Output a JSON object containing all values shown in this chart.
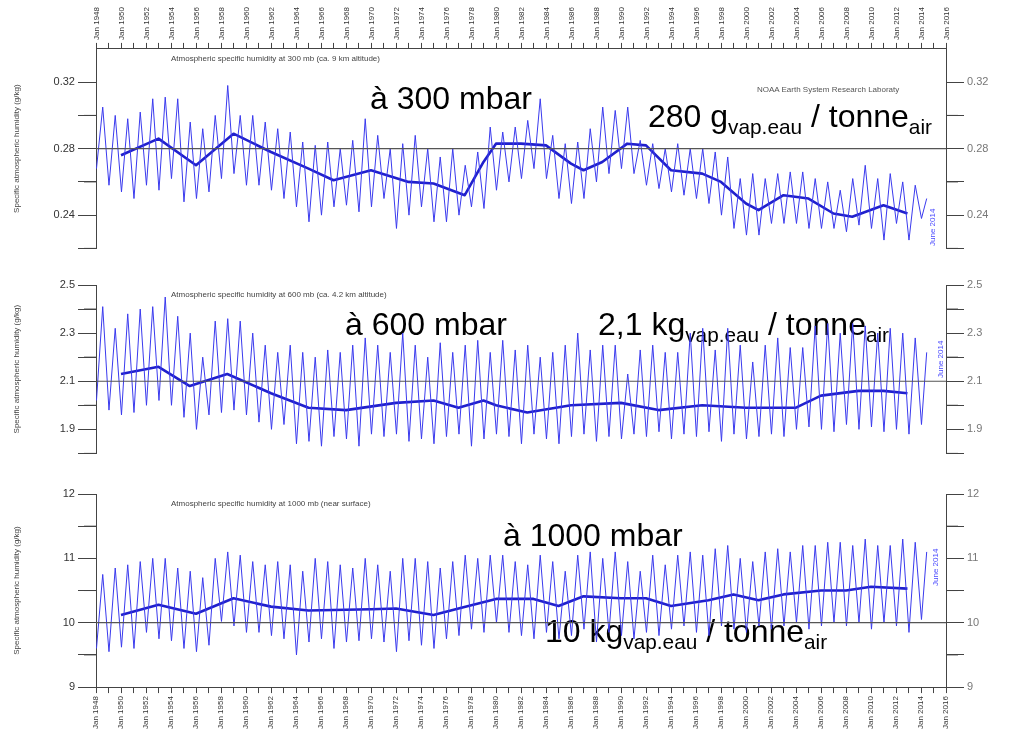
{
  "chart_data": [
    {
      "type": "line",
      "title": "Atmospheric specific humidity at 300 mb (ca. 9 km altitude)",
      "ylabel": "Specific atmospheric humidity (g/kg)",
      "x": [
        "1948-01-15",
        "1948-07-15",
        "1949-01-15",
        "1949-07-15",
        "1950-01-15",
        "1950-07-15",
        "1951-01-15",
        "1951-07-15",
        "1952-01-15",
        "1952-07-15",
        "1953-01-15",
        "1953-07-15",
        "1954-01-15",
        "1954-07-15",
        "1955-01-15",
        "1955-07-15",
        "1956-01-15",
        "1956-07-15",
        "1957-01-15",
        "1957-07-15",
        "1958-01-15",
        "1958-07-15",
        "1959-01-15",
        "1959-07-15",
        "1960-01-15",
        "1960-07-15",
        "1961-01-15",
        "1961-07-15",
        "1962-01-15",
        "1962-07-15",
        "1963-01-15",
        "1963-07-15",
        "1964-01-15",
        "1964-07-15",
        "1965-01-15",
        "1965-07-15",
        "1966-01-15",
        "1966-07-15",
        "1967-01-15",
        "1967-07-15",
        "1968-01-15",
        "1968-07-15",
        "1969-01-15",
        "1969-07-15",
        "1970-01-15",
        "1970-07-15",
        "1971-01-15",
        "1971-07-15",
        "1972-01-15",
        "1972-07-15",
        "1973-01-15",
        "1973-07-15",
        "1974-01-15",
        "1974-07-15",
        "1975-01-15",
        "1975-07-15",
        "1976-01-15",
        "1976-07-15",
        "1977-01-15",
        "1977-07-15",
        "1978-01-15",
        "1978-07-15",
        "1979-01-15",
        "1979-07-15",
        "1980-01-15",
        "1980-07-15",
        "1981-01-15",
        "1981-07-15",
        "1982-01-15",
        "1982-07-15",
        "1983-01-15",
        "1983-07-15",
        "1984-01-15",
        "1984-07-15",
        "1985-01-15",
        "1985-07-15",
        "1986-01-15",
        "1986-07-15",
        "1987-01-15",
        "1987-07-15",
        "1988-01-15",
        "1988-07-15",
        "1989-01-15",
        "1989-07-15",
        "1990-01-15",
        "1990-07-15",
        "1991-01-15",
        "1991-07-15",
        "1992-01-15",
        "1992-07-15",
        "1993-01-15",
        "1993-07-15",
        "1994-01-15",
        "1994-07-15",
        "1995-01-15",
        "1995-07-15",
        "1996-01-15",
        "1996-07-15",
        "1997-01-15",
        "1997-07-15",
        "1998-01-15",
        "1998-07-15",
        "1999-01-15",
        "1999-07-15",
        "2000-01-15",
        "2000-07-15",
        "2001-01-15",
        "2001-07-15",
        "2002-01-15",
        "2002-07-15",
        "2003-01-15",
        "2003-07-15",
        "2004-01-15",
        "2004-07-15",
        "2005-01-15",
        "2005-07-15",
        "2006-01-15",
        "2006-07-15",
        "2007-01-15",
        "2007-07-15",
        "2008-01-15",
        "2008-07-15",
        "2009-01-15",
        "2009-07-15",
        "2010-01-15",
        "2010-07-15",
        "2011-01-15",
        "2011-07-15",
        "2012-01-15",
        "2012-07-15",
        "2013-01-15",
        "2013-07-15",
        "2014-01-15",
        "2014-06-15"
      ],
      "series": [
        {
          "color": "#3a3aee",
          "values": [
            0.268,
            0.305,
            0.258,
            0.3,
            0.254,
            0.298,
            0.25,
            0.302,
            0.258,
            0.31,
            0.255,
            0.311,
            0.262,
            0.31,
            0.248,
            0.296,
            0.25,
            0.292,
            0.254,
            0.3,
            0.262,
            0.318,
            0.265,
            0.3,
            0.258,
            0.3,
            0.258,
            0.296,
            0.255,
            0.292,
            0.25,
            0.29,
            0.245,
            0.284,
            0.236,
            0.282,
            0.24,
            0.284,
            0.245,
            0.28,
            0.246,
            0.285,
            0.242,
            0.298,
            0.245,
            0.288,
            0.25,
            0.28,
            0.232,
            0.283,
            0.24,
            0.288,
            0.245,
            0.28,
            0.236,
            0.275,
            0.236,
            0.28,
            0.24,
            0.27,
            0.245,
            0.278,
            0.244,
            0.293,
            0.255,
            0.29,
            0.26,
            0.293,
            0.262,
            0.297,
            0.268,
            0.31,
            0.262,
            0.288,
            0.25,
            0.283,
            0.247,
            0.284,
            0.25,
            0.292,
            0.26,
            0.305,
            0.265,
            0.303,
            0.268,
            0.305,
            0.265,
            0.285,
            0.258,
            0.283,
            0.256,
            0.28,
            0.254,
            0.283,
            0.252,
            0.28,
            0.25,
            0.28,
            0.247,
            0.278,
            0.24,
            0.275,
            0.232,
            0.262,
            0.228,
            0.265,
            0.228,
            0.262,
            0.235,
            0.265,
            0.235,
            0.266,
            0.235,
            0.266,
            0.232,
            0.262,
            0.232,
            0.26,
            0.232,
            0.255,
            0.23,
            0.262,
            0.234,
            0.27,
            0.232,
            0.262,
            0.225,
            0.265,
            0.235,
            0.26,
            0.225,
            0.258,
            0.238,
            0.25
          ]
        },
        {
          "color": "#2020cc",
          "x": [
            "1950-01",
            "1953-01",
            "1956-01",
            "1959-01",
            "1962-01",
            "1965-01",
            "1967-01",
            "1970-01",
            "1973-01",
            "1975-01",
            "1977-07",
            "1979-01",
            "1980-01",
            "1982-01",
            "1984-01",
            "1986-01",
            "1987-01",
            "1988-07",
            "1990-07",
            "1992-01",
            "1994-01",
            "1996-07",
            "1998-01",
            "2000-01",
            "2001-01",
            "2003-01",
            "2005-01",
            "2007-01",
            "2008-07",
            "2011-01",
            "2012-12"
          ],
          "values": [
            0.276,
            0.286,
            0.27,
            0.289,
            0.278,
            0.268,
            0.261,
            0.267,
            0.26,
            0.259,
            0.252,
            0.272,
            0.283,
            0.283,
            0.282,
            0.271,
            0.267,
            0.272,
            0.283,
            0.282,
            0.267,
            0.265,
            0.26,
            0.247,
            0.243,
            0.252,
            0.25,
            0.241,
            0.239,
            0.246,
            0.241
          ]
        }
      ],
      "xlim": [
        "1948-01",
        "2016-01"
      ],
      "x2lim": [
        "1948-01",
        "2016-01"
      ],
      "x2ticks": [
        {
          "value": "1948-01",
          "label": "Jan 1948"
        },
        {
          "value": "1949-01",
          "label": null
        },
        {
          "value": "1950-01",
          "label": "Jan 1950"
        },
        {
          "value": "1951-01",
          "label": null
        },
        {
          "value": "1952-01",
          "label": "Jan 1952"
        },
        {
          "value": "1953-01",
          "label": null
        },
        {
          "value": "1954-01",
          "label": "Jan 1954"
        },
        {
          "value": "1955-01",
          "label": null
        },
        {
          "value": "1956-01",
          "label": "Jan 1956"
        },
        {
          "value": "1957-01",
          "label": null
        },
        {
          "value": "1958-01",
          "label": "Jan 1958"
        },
        {
          "value": "1959-01",
          "label": null
        },
        {
          "value": "1960-01",
          "label": "Jan 1960"
        },
        {
          "value": "1961-01",
          "label": null
        },
        {
          "value": "1962-01",
          "label": "Jan 1962"
        },
        {
          "value": "1963-01",
          "label": null
        },
        {
          "value": "1964-01",
          "label": "Jan 1964"
        },
        {
          "value": "1965-01",
          "label": null
        },
        {
          "value": "1966-01",
          "label": "Jan 1966"
        },
        {
          "value": "1967-01",
          "label": null
        },
        {
          "value": "1968-01",
          "label": "Jan 1968"
        },
        {
          "value": "1969-01",
          "label": null
        },
        {
          "value": "1970-01",
          "label": "Jan 1970"
        },
        {
          "value": "1971-01",
          "label": null
        },
        {
          "value": "1972-01",
          "label": "Jan 1972"
        },
        {
          "value": "1973-01",
          "label": null
        },
        {
          "value": "1974-01",
          "label": "Jan 1974"
        },
        {
          "value": "1975-01",
          "label": null
        },
        {
          "value": "1976-01",
          "label": "Jan 1976"
        },
        {
          "value": "1977-01",
          "label": null
        },
        {
          "value": "1978-01",
          "label": "Jan 1978"
        },
        {
          "value": "1979-01",
          "label": null
        },
        {
          "value": "1980-01",
          "label": "Jan 1980"
        },
        {
          "value": "1981-01",
          "label": null
        },
        {
          "value": "1982-01",
          "label": "Jan 1982"
        },
        {
          "value": "1983-01",
          "label": null
        },
        {
          "value": "1984-01",
          "label": "Jan 1984"
        },
        {
          "value": "1985-01",
          "label": null
        },
        {
          "value": "1986-01",
          "label": "Jan 1986"
        },
        {
          "value": "1987-01",
          "label": null
        },
        {
          "value": "1988-01",
          "label": "Jan 1988"
        },
        {
          "value": "1989-01",
          "label": null
        },
        {
          "value": "1990-01",
          "label": "Jan 1990"
        },
        {
          "value": "1991-01",
          "label": null
        },
        {
          "value": "1992-01",
          "label": "Jan 1992"
        },
        {
          "value": "1993-01",
          "label": null
        },
        {
          "value": "1994-01",
          "label": "Jan 1994"
        },
        {
          "value": "1995-01",
          "label": null
        },
        {
          "value": "1996-01",
          "label": "Jan 1996"
        },
        {
          "value": "1997-01",
          "label": null
        },
        {
          "value": "1998-01",
          "label": "Jan 1998"
        },
        {
          "value": "1999-01",
          "label": null
        },
        {
          "value": "2000-01",
          "label": "Jan 2000"
        },
        {
          "value": "2001-01",
          "label": null
        },
        {
          "value": "2002-01",
          "label": "Jan 2002"
        },
        {
          "value": "2003-01",
          "label": null
        },
        {
          "value": "2004-01",
          "label": "Jan 2004"
        },
        {
          "value": "2005-01",
          "label": null
        },
        {
          "value": "2006-01",
          "label": "Jan 2006"
        },
        {
          "value": "2007-01",
          "label": null
        },
        {
          "value": "2008-01",
          "label": "Jan 2008"
        },
        {
          "value": "2009-01",
          "label": null
        },
        {
          "value": "2010-01",
          "label": "Jan 2010"
        },
        {
          "value": "2011-01",
          "label": null
        },
        {
          "value": "2012-01",
          "label": "Jan 2012"
        },
        {
          "value": "2013-01",
          "label": null
        },
        {
          "value": "2014-01",
          "label": "Jan 2014"
        },
        {
          "value": "2015-01",
          "label": null
        },
        {
          "value": "2016-01",
          "label": "Jan 2016"
        }
      ],
      "ylim": [
        0.22,
        0.34
      ],
      "yticks": [
        {
          "value": 0.22,
          "label": null
        },
        0.24,
        {
          "value": 0.26,
          "label": null
        },
        0.28,
        {
          "value": 0.3,
          "label": null
        },
        0.32
      ],
      "y2lim": [
        0.22,
        0.34
      ],
      "y2ticks": [
        {
          "value": 0.22,
          "label": null
        },
        0.24,
        {
          "value": 0.26,
          "label": null
        },
        0.28,
        {
          "value": 0.3,
          "label": null
        },
        0.32
      ],
      "tick_labels": "y",
      "ref_lines": [
        {
          "axis": "y",
          "value": 0.28,
          "color": "#555555"
        }
      ],
      "annotations": [
        "à 300 mbar",
        "280 g$_{vap.eau}$ / tonne$_{air}$",
        "NOAA Earth System Research Laboraty",
        "June 2014"
      ]
    },
    {
      "type": "line",
      "title": "Atmospheric specific humidity at 600 mb (ca. 4.2 km altitude)",
      "ylabel": "Specific atmospheric humidity (g/kg)",
      "x": [
        "1948-01-15",
        "1948-07-15",
        "1949-01-15",
        "1949-07-15",
        "1950-01-15",
        "1950-07-15",
        "1951-01-15",
        "1951-07-15",
        "1952-01-15",
        "1952-07-15",
        "1953-01-15",
        "1953-07-15",
        "1954-01-15",
        "1954-07-15",
        "1955-01-15",
        "1955-07-15",
        "1956-01-15",
        "1956-07-15",
        "1957-01-15",
        "1957-07-15",
        "1958-01-15",
        "1958-07-15",
        "1959-01-15",
        "1959-07-15",
        "1960-01-15",
        "1960-07-15",
        "1961-01-15",
        "1961-07-15",
        "1962-01-15",
        "1962-07-15",
        "1963-01-15",
        "1963-07-15",
        "1964-01-15",
        "1964-07-15",
        "1965-01-15",
        "1965-07-15",
        "1966-01-15",
        "1966-07-15",
        "1967-01-15",
        "1967-07-15",
        "1968-01-15",
        "1968-07-15",
        "1969-01-15",
        "1969-07-15",
        "1970-01-15",
        "1970-07-15",
        "1971-01-15",
        "1971-07-15",
        "1972-01-15",
        "1972-07-15",
        "1973-01-15",
        "1973-07-15",
        "1974-01-15",
        "1974-07-15",
        "1975-01-15",
        "1975-07-15",
        "1976-01-15",
        "1976-07-15",
        "1977-01-15",
        "1977-07-15",
        "1978-01-15",
        "1978-07-15",
        "1979-01-15",
        "1979-07-15",
        "1980-01-15",
        "1980-07-15",
        "1981-01-15",
        "1981-07-15",
        "1982-01-15",
        "1982-07-15",
        "1983-01-15",
        "1983-07-15",
        "1984-01-15",
        "1984-07-15",
        "1985-01-15",
        "1985-07-15",
        "1986-01-15",
        "1986-07-15",
        "1987-01-15",
        "1987-07-15",
        "1988-01-15",
        "1988-07-15",
        "1989-01-15",
        "1989-07-15",
        "1990-01-15",
        "1990-07-15",
        "1991-01-15",
        "1991-07-15",
        "1992-01-15",
        "1992-07-15",
        "1993-01-15",
        "1993-07-15",
        "1994-01-15",
        "1994-07-15",
        "1995-01-15",
        "1995-07-15",
        "1996-01-15",
        "1996-07-15",
        "1997-01-15",
        "1997-07-15",
        "1998-01-15",
        "1998-07-15",
        "1999-01-15",
        "1999-07-15",
        "2000-01-15",
        "2000-07-15",
        "2001-01-15",
        "2001-07-15",
        "2002-01-15",
        "2002-07-15",
        "2003-01-15",
        "2003-07-15",
        "2004-01-15",
        "2004-07-15",
        "2005-01-15",
        "2005-07-15",
        "2006-01-15",
        "2006-07-15",
        "2007-01-15",
        "2007-07-15",
        "2008-01-15",
        "2008-07-15",
        "2009-01-15",
        "2009-07-15",
        "2010-01-15",
        "2010-07-15",
        "2011-01-15",
        "2011-07-15",
        "2012-01-15",
        "2012-07-15",
        "2013-01-15",
        "2013-07-15",
        "2014-01-15",
        "2014-06-15"
      ],
      "series": [
        {
          "color": "#3a3aee",
          "values": [
            2.02,
            2.41,
            1.98,
            2.32,
            1.96,
            2.38,
            1.97,
            2.4,
            2.0,
            2.41,
            2.02,
            2.45,
            2.0,
            2.37,
            1.95,
            2.3,
            1.9,
            2.2,
            1.96,
            2.35,
            1.97,
            2.36,
            1.98,
            2.35,
            1.96,
            2.3,
            1.93,
            2.25,
            1.9,
            2.22,
            1.92,
            2.25,
            1.84,
            2.22,
            1.85,
            2.2,
            1.83,
            2.23,
            1.87,
            2.22,
            1.86,
            2.25,
            1.83,
            2.28,
            1.88,
            2.25,
            1.87,
            2.22,
            1.88,
            2.3,
            1.85,
            2.25,
            1.86,
            2.2,
            1.84,
            2.26,
            1.87,
            2.22,
            1.88,
            2.25,
            1.83,
            2.27,
            1.86,
            2.22,
            1.88,
            2.27,
            1.87,
            2.23,
            1.84,
            2.25,
            1.88,
            2.2,
            1.86,
            2.22,
            1.84,
            2.25,
            1.87,
            2.3,
            1.88,
            2.23,
            1.85,
            2.25,
            1.87,
            2.25,
            1.86,
            2.13,
            1.88,
            2.23,
            1.87,
            2.25,
            1.89,
            2.22,
            1.86,
            2.22,
            1.88,
            2.3,
            1.87,
            2.32,
            1.89,
            2.23,
            1.85,
            2.32,
            1.88,
            2.25,
            1.86,
            2.18,
            1.87,
            2.25,
            1.88,
            2.28,
            1.87,
            2.24,
            1.9,
            2.24,
            1.91,
            2.33,
            1.9,
            2.34,
            1.89,
            2.3,
            1.92,
            2.34,
            1.9,
            2.33,
            1.91,
            2.3,
            1.89,
            2.32,
            1.9,
            2.3,
            1.88,
            2.28,
            1.92,
            2.22
          ]
        },
        {
          "color": "#2020cc",
          "x": [
            "1950-01",
            "1953-01",
            "1955-07",
            "1958-07",
            "1962-01",
            "1965-01",
            "1968-01",
            "1972-01",
            "1975-01",
            "1977-01",
            "1979-01",
            "1980-01",
            "1982-07",
            "1986-01",
            "1990-01",
            "1993-01",
            "1996-07",
            "2000-01",
            "2004-01",
            "2006-01",
            "2009-01",
            "2011-01",
            "2012-12"
          ],
          "values": [
            2.13,
            2.16,
            2.08,
            2.13,
            2.05,
            1.99,
            1.98,
            2.01,
            2.02,
            1.99,
            2.02,
            2.0,
            1.97,
            2.0,
            2.01,
            1.98,
            2.0,
            1.99,
            1.99,
            2.04,
            2.06,
            2.06,
            2.05
          ]
        }
      ],
      "xlim": [
        "1948-01",
        "2016-01"
      ],
      "ylim": [
        1.8,
        2.5
      ],
      "yticks": [
        {
          "value": 1.8,
          "label": null
        },
        1.9,
        {
          "value": 2.0,
          "label": null
        },
        2.1,
        {
          "value": 2.2,
          "label": null
        },
        2.3,
        {
          "value": 2.4,
          "label": null
        },
        2.5
      ],
      "y2lim": [
        1.8,
        2.5
      ],
      "y2ticks": [
        {
          "value": 1.8,
          "label": null
        },
        1.9,
        {
          "value": 2.0,
          "label": null
        },
        2.1,
        {
          "value": 2.2,
          "label": null
        },
        2.3,
        {
          "value": 2.4,
          "label": null
        },
        2.5
      ],
      "tick_labels": "y",
      "ref_lines": [
        {
          "axis": "y",
          "value": 2.1,
          "color": "#555555"
        }
      ],
      "annotations": [
        "à 600 mbar",
        "2,1 kg$_{vap.eau}$ / tonne$_{air}$",
        "June 2014"
      ]
    },
    {
      "type": "line",
      "title": "Atmospheric specific humidity at 1000 mb (near surface)",
      "ylabel": "Specific atmospheric humidity (g/kg)",
      "x": [
        "1948-01-15",
        "1948-07-15",
        "1949-01-15",
        "1949-07-15",
        "1950-01-15",
        "1950-07-15",
        "1951-01-15",
        "1951-07-15",
        "1952-01-15",
        "1952-07-15",
        "1953-01-15",
        "1953-07-15",
        "1954-01-15",
        "1954-07-15",
        "1955-01-15",
        "1955-07-15",
        "1956-01-15",
        "1956-07-15",
        "1957-01-15",
        "1957-07-15",
        "1958-01-15",
        "1958-07-15",
        "1959-01-15",
        "1959-07-15",
        "1960-01-15",
        "1960-07-15",
        "1961-01-15",
        "1961-07-15",
        "1962-01-15",
        "1962-07-15",
        "1963-01-15",
        "1963-07-15",
        "1964-01-15",
        "1964-07-15",
        "1965-01-15",
        "1965-07-15",
        "1966-01-15",
        "1966-07-15",
        "1967-01-15",
        "1967-07-15",
        "1968-01-15",
        "1968-07-15",
        "1969-01-15",
        "1969-07-15",
        "1970-01-15",
        "1970-07-15",
        "1971-01-15",
        "1971-07-15",
        "1972-01-15",
        "1972-07-15",
        "1973-01-15",
        "1973-07-15",
        "1974-01-15",
        "1974-07-15",
        "1975-01-15",
        "1975-07-15",
        "1976-01-15",
        "1976-07-15",
        "1977-01-15",
        "1977-07-15",
        "1978-01-15",
        "1978-07-15",
        "1979-01-15",
        "1979-07-15",
        "1980-01-15",
        "1980-07-15",
        "1981-01-15",
        "1981-07-15",
        "1982-01-15",
        "1982-07-15",
        "1983-01-15",
        "1983-07-15",
        "1984-01-15",
        "1984-07-15",
        "1985-01-15",
        "1985-07-15",
        "1986-01-15",
        "1986-07-15",
        "1987-01-15",
        "1987-07-15",
        "1988-01-15",
        "1988-07-15",
        "1989-01-15",
        "1989-07-15",
        "1990-01-15",
        "1990-07-15",
        "1991-01-15",
        "1991-07-15",
        "1992-01-15",
        "1992-07-15",
        "1993-01-15",
        "1993-07-15",
        "1994-01-15",
        "1994-07-15",
        "1995-01-15",
        "1995-07-15",
        "1996-01-15",
        "1996-07-15",
        "1997-01-15",
        "1997-07-15",
        "1998-01-15",
        "1998-07-15",
        "1999-01-15",
        "1999-07-15",
        "2000-01-15",
        "2000-07-15",
        "2001-01-15",
        "2001-07-15",
        "2002-01-15",
        "2002-07-15",
        "2003-01-15",
        "2003-07-15",
        "2004-01-15",
        "2004-07-15",
        "2005-01-15",
        "2005-07-15",
        "2006-01-15",
        "2006-07-15",
        "2007-01-15",
        "2007-07-15",
        "2008-01-15",
        "2008-07-15",
        "2009-01-15",
        "2009-07-15",
        "2010-01-15",
        "2010-07-15",
        "2011-01-15",
        "2011-07-15",
        "2012-01-15",
        "2012-07-15",
        "2013-01-15",
        "2013-07-15",
        "2014-01-15",
        "2014-06-15"
      ],
      "series": [
        {
          "color": "#3a3aee",
          "values": [
            9.6,
            10.75,
            9.55,
            10.85,
            9.62,
            10.9,
            9.6,
            10.95,
            9.85,
            11.0,
            9.75,
            11.0,
            9.72,
            10.85,
            9.6,
            10.8,
            9.55,
            10.7,
            9.65,
            11.0,
            10.02,
            11.1,
            9.95,
            11.05,
            9.85,
            10.95,
            9.85,
            10.9,
            9.8,
            10.95,
            9.75,
            10.9,
            9.5,
            10.8,
            9.7,
            11.0,
            9.75,
            10.95,
            9.6,
            10.9,
            9.7,
            10.85,
            9.72,
            11.0,
            9.75,
            10.9,
            9.7,
            10.8,
            9.55,
            11.0,
            9.72,
            11.0,
            9.65,
            10.95,
            9.6,
            10.85,
            9.75,
            10.95,
            9.8,
            11.05,
            9.9,
            11.0,
            9.85,
            11.05,
            10.0,
            11.05,
            9.85,
            10.95,
            9.8,
            10.9,
            9.75,
            11.05,
            9.85,
            10.95,
            9.75,
            10.8,
            9.8,
            11.05,
            9.9,
            11.1,
            9.7,
            11.0,
            9.85,
            11.1,
            9.8,
            10.95,
            9.75,
            10.8,
            9.85,
            11.05,
            9.8,
            10.9,
            9.9,
            11.05,
            9.95,
            11.1,
            9.85,
            11.05,
            9.8,
            11.15,
            9.95,
            11.2,
            9.9,
            11.0,
            9.85,
            10.95,
            9.95,
            11.1,
            9.9,
            11.15,
            9.95,
            11.1,
            10.0,
            11.2,
            9.9,
            11.2,
            9.95,
            11.25,
            10.0,
            11.25,
            9.95,
            11.2,
            10.0,
            11.3,
            9.9,
            11.2,
            10.0,
            11.2,
            9.95,
            11.3,
            9.85,
            11.25,
            10.05,
            11.1
          ]
        },
        {
          "color": "#2020cc",
          "x": [
            "1950-01",
            "1953-01",
            "1956-01",
            "1959-01",
            "1962-01",
            "1965-01",
            "1970-01",
            "1972-01",
            "1975-01",
            "1977-01",
            "1980-01",
            "1983-01",
            "1985-01",
            "1987-01",
            "1990-01",
            "1992-01",
            "1994-01",
            "1997-01",
            "1999-01",
            "2001-01",
            "2003-01",
            "2006-01",
            "2008-01",
            "2010-01",
            "2012-12"
          ],
          "values": [
            10.12,
            10.28,
            10.14,
            10.38,
            10.25,
            10.19,
            10.21,
            10.22,
            10.12,
            10.22,
            10.37,
            10.37,
            10.26,
            10.41,
            10.38,
            10.38,
            10.26,
            10.35,
            10.44,
            10.35,
            10.44,
            10.5,
            10.5,
            10.56,
            10.53
          ]
        }
      ],
      "xlim": [
        "1948-01",
        "2016-01"
      ],
      "xticks": [
        {
          "value": "1948-01",
          "label": "Jan 1948"
        },
        {
          "value": "1949-01",
          "label": null
        },
        {
          "value": "1950-01",
          "label": "Jan 1950"
        },
        {
          "value": "1951-01",
          "label": null
        },
        {
          "value": "1952-01",
          "label": "Jan 1952"
        },
        {
          "value": "1953-01",
          "label": null
        },
        {
          "value": "1954-01",
          "label": "Jan 1954"
        },
        {
          "value": "1955-01",
          "label": null
        },
        {
          "value": "1956-01",
          "label": "Jan 1956"
        },
        {
          "value": "1957-01",
          "label": null
        },
        {
          "value": "1958-01",
          "label": "Jan 1958"
        },
        {
          "value": "1959-01",
          "label": null
        },
        {
          "value": "1960-01",
          "label": "Jan 1960"
        },
        {
          "value": "1961-01",
          "label": null
        },
        {
          "value": "1962-01",
          "label": "Jan 1962"
        },
        {
          "value": "1963-01",
          "label": null
        },
        {
          "value": "1964-01",
          "label": "Jan 1964"
        },
        {
          "value": "1965-01",
          "label": null
        },
        {
          "value": "1966-01",
          "label": "Jan 1966"
        },
        {
          "value": "1967-01",
          "label": null
        },
        {
          "value": "1968-01",
          "label": "Jan 1968"
        },
        {
          "value": "1969-01",
          "label": null
        },
        {
          "value": "1970-01",
          "label": "Jan 1970"
        },
        {
          "value": "1971-01",
          "label": null
        },
        {
          "value": "1972-01",
          "label": "Jan 1972"
        },
        {
          "value": "1973-01",
          "label": null
        },
        {
          "value": "1974-01",
          "label": "Jan 1974"
        },
        {
          "value": "1975-01",
          "label": null
        },
        {
          "value": "1976-01",
          "label": "Jan 1976"
        },
        {
          "value": "1977-01",
          "label": null
        },
        {
          "value": "1978-01",
          "label": "Jan 1978"
        },
        {
          "value": "1979-01",
          "label": null
        },
        {
          "value": "1980-01",
          "label": "Jan 1980"
        },
        {
          "value": "1981-01",
          "label": null
        },
        {
          "value": "1982-01",
          "label": "Jan 1982"
        },
        {
          "value": "1983-01",
          "label": null
        },
        {
          "value": "1984-01",
          "label": "Jan 1984"
        },
        {
          "value": "1985-01",
          "label": null
        },
        {
          "value": "1986-01",
          "label": "Jan 1986"
        },
        {
          "value": "1987-01",
          "label": null
        },
        {
          "value": "1988-01",
          "label": "Jan 1988"
        },
        {
          "value": "1989-01",
          "label": null
        },
        {
          "value": "1990-01",
          "label": "Jan 1990"
        },
        {
          "value": "1991-01",
          "label": null
        },
        {
          "value": "1992-01",
          "label": "Jan 1992"
        },
        {
          "value": "1993-01",
          "label": null
        },
        {
          "value": "1994-01",
          "label": "Jan 1994"
        },
        {
          "value": "1995-01",
          "label": null
        },
        {
          "value": "1996-01",
          "label": "Jan 1996"
        },
        {
          "value": "1997-01",
          "label": null
        },
        {
          "value": "1998-01",
          "label": "Jan 1998"
        },
        {
          "value": "1999-01",
          "label": null
        },
        {
          "value": "2000-01",
          "label": "Jan 2000"
        },
        {
          "value": "2001-01",
          "label": null
        },
        {
          "value": "2002-01",
          "label": "Jan 2002"
        },
        {
          "value": "2003-01",
          "label": null
        },
        {
          "value": "2004-01",
          "label": "Jan 2004"
        },
        {
          "value": "2005-01",
          "label": null
        },
        {
          "value": "2006-01",
          "label": "Jan 2006"
        },
        {
          "value": "2007-01",
          "label": null
        },
        {
          "value": "2008-01",
          "label": "Jan 2008"
        },
        {
          "value": "2009-01",
          "label": null
        },
        {
          "value": "2010-01",
          "label": "Jan 2010"
        },
        {
          "value": "2011-01",
          "label": null
        },
        {
          "value": "2012-01",
          "label": "Jan 2012"
        },
        {
          "value": "2013-01",
          "label": null
        },
        {
          "value": "2014-01",
          "label": "Jan 2014"
        },
        {
          "value": "2015-01",
          "label": null
        },
        {
          "value": "2016-01",
          "label": "Jan 2016"
        }
      ],
      "ylim": [
        9,
        12
      ],
      "yticks": [
        9,
        {
          "value": 9.5,
          "label": null
        },
        10,
        {
          "value": 10.5,
          "label": null
        },
        11,
        {
          "value": 11.5,
          "label": null
        },
        12
      ],
      "y2lim": [
        9,
        12
      ],
      "y2ticks": [
        9,
        {
          "value": 9.5,
          "label": null
        },
        10,
        {
          "value": 10.5,
          "label": null
        },
        11,
        {
          "value": 11.5,
          "label": null
        },
        12
      ],
      "ref_lines": [
        {
          "axis": "y",
          "value": 10,
          "color": "#555555"
        }
      ],
      "annotations": [
        "à 1000 mbar",
        "10 kg$_{vap.eau}$ / tonne$_{air}$",
        "June 2014"
      ]
    }
  ]
}
